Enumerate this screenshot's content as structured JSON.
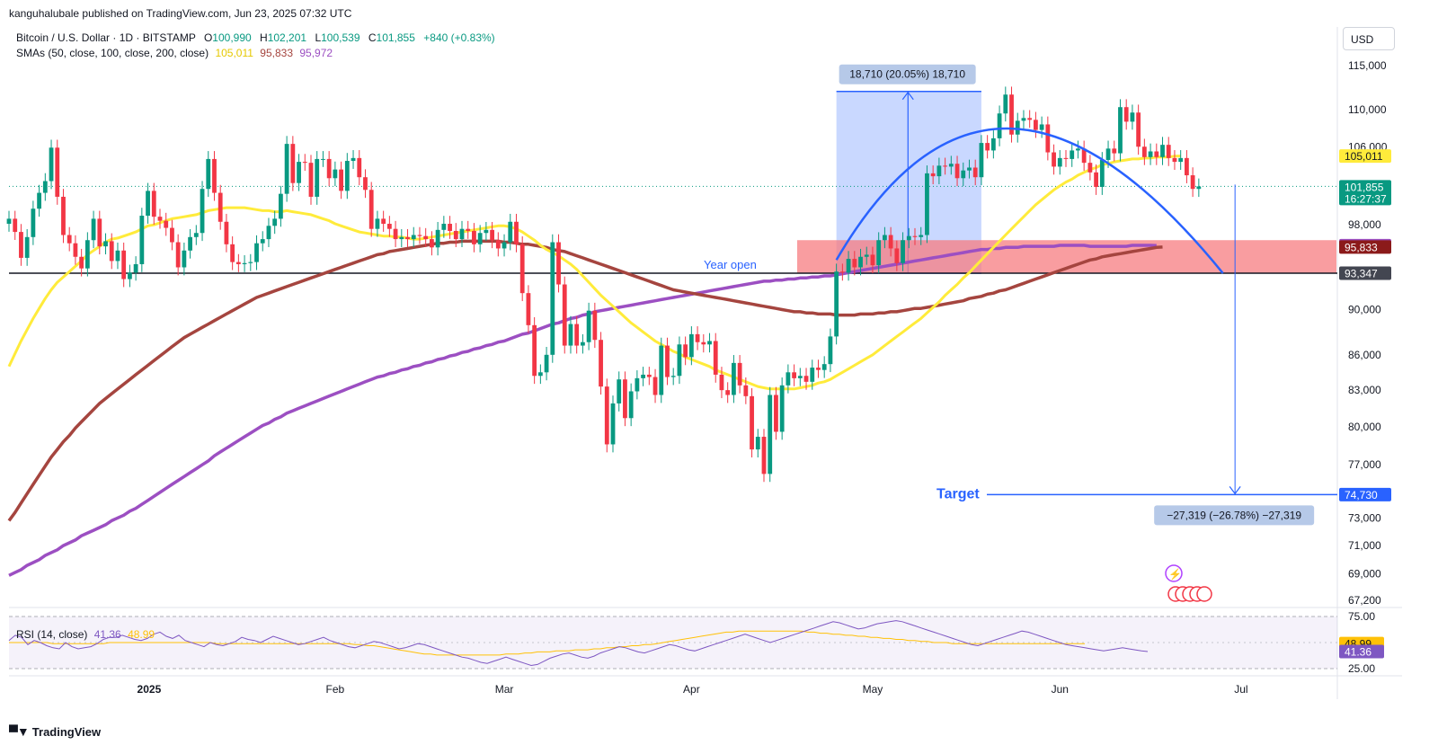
{
  "header": {
    "publisher": "kanguhalubale published on TradingView.com, Jun 23, 2025 07:32 UTC",
    "symbol": "Bitcoin / U.S. Dollar · 1D · BITSTAMP",
    "ohlc": {
      "o_label": "O",
      "o": "100,990",
      "h_label": "H",
      "h": "102,201",
      "l_label": "L",
      "l": "100,539",
      "c_label": "C",
      "c": "101,855",
      "change": "+840 (+0.83%)"
    },
    "sma_label": "SMAs (50, close, 100, close, 200, close)",
    "sma_values": {
      "sma50": "105,011",
      "sma100": "95,833",
      "sma200": "95,972"
    },
    "rsi_label": "RSI (14, close)",
    "rsi_values": {
      "rsi": "41.36",
      "ma": "48.99"
    },
    "currency": "USD",
    "brand": "TradingView"
  },
  "colors": {
    "up": "#089981",
    "down": "#f23645",
    "sma50": "#ffeb3b",
    "sma100": "#a5453f",
    "sma200": "#9c4fc2",
    "rsi": "#7e57c2",
    "rsi_ma": "#ffc107",
    "accent": "#2962ff",
    "zone": "#f77c80",
    "measure": "#2962ff"
  },
  "chart_data": {
    "type": "line",
    "yaxis_ticks": [
      "115,000",
      "110,000",
      "106,000",
      "98,000",
      "90,000",
      "86,000",
      "83,000",
      "80,000",
      "77,000",
      "73,000",
      "71,000",
      "69,000",
      "67,200"
    ],
    "xaxis_ticks": [
      "2025",
      "Feb",
      "Mar",
      "Apr",
      "May",
      "Jun",
      "Jul"
    ],
    "rsi_ticks": [
      "75.00",
      "25.00"
    ],
    "price_tags": [
      {
        "label": "105,011",
        "value": 105011,
        "bg": "#ffeb3b",
        "fg": "#131722"
      },
      {
        "label": "101,855",
        "sub": "16:27:37",
        "value": 101855,
        "bg": "#089981",
        "fg": "#ffffff"
      },
      {
        "label": "95,972",
        "value": 95972,
        "bg": "#9c4fc2",
        "fg": "#ffffff"
      },
      {
        "label": "95,833",
        "value": 95833,
        "bg": "#8b1a1a",
        "fg": "#ffffff"
      },
      {
        "label": "93,347",
        "value": 93347,
        "bg": "#434651",
        "fg": "#ffffff"
      },
      {
        "label": "74,730",
        "value": 74730,
        "bg": "#2962ff",
        "fg": "#ffffff"
      }
    ],
    "rsi_tags": [
      {
        "label": "48.99",
        "value": 48.99,
        "bg": "#ffc107",
        "fg": "#131722"
      },
      {
        "label": "41.36",
        "value": 41.36,
        "bg": "#7e57c2",
        "fg": "#ffffff"
      }
    ],
    "year_open": {
      "label": "Year open",
      "value": 93347
    },
    "target": {
      "label": "Target",
      "value": 74730
    },
    "measure_up": {
      "label": "18,710 (20.05%) 18,710",
      "from": 93347,
      "to": 112057
    },
    "measure_down": {
      "label": "−27,319 (−26.78%) −27,319",
      "from": 102049,
      "to": 74730
    },
    "resistance_zone": [
      93347,
      96500
    ],
    "series_close": [
      98600,
      97300,
      94800,
      96800,
      99600,
      101200,
      102400,
      105900,
      100800,
      97000,
      96200,
      94900,
      93800,
      96500,
      98600,
      95900,
      96400,
      94500,
      95500,
      92800,
      93400,
      94200,
      98900,
      101400,
      98800,
      98400,
      97700,
      96300,
      93900,
      95500,
      96800,
      97200,
      101600,
      104700,
      101200,
      98300,
      96100,
      94400,
      94200,
      94300,
      94400,
      96200,
      96600,
      97900,
      98600,
      101100,
      106300,
      102200,
      104400,
      104300,
      100800,
      104700,
      104700,
      102700,
      103600,
      101400,
      104500,
      104800,
      102800,
      101500,
      97600,
      98600,
      98100,
      97600,
      96600,
      96800,
      96600,
      97000,
      96900,
      96600,
      95800,
      97500,
      98100,
      97400,
      96600,
      97600,
      97400,
      96100,
      97200,
      97500,
      96500,
      95700,
      96300,
      98300,
      96100,
      91500,
      88600,
      84200,
      84500,
      86000,
      96300,
      92300,
      86800,
      88700,
      86800,
      87100,
      89900,
      87300,
      83300,
      78600,
      81900,
      83900,
      80700,
      82900,
      84000,
      84300,
      84100,
      82600,
      86800,
      84100,
      84200,
      86900,
      85800,
      87800,
      87100,
      86900,
      87200,
      84300,
      83000,
      82600,
      85300,
      83400,
      82500,
      78200,
      79200,
      76300,
      82600,
      79600,
      83400,
      84500,
      84000,
      84200,
      83700,
      84900,
      84700,
      85200,
      87600,
      93500,
      93400,
      94700,
      93900,
      94900,
      95100,
      94100,
      96500,
      97000,
      95700,
      94300,
      96500,
      96900,
      96800,
      97000,
      103200,
      102900,
      104000,
      103900,
      104200,
      102700,
      103500,
      103800,
      102800,
      106400,
      105600,
      106900,
      109600,
      111700,
      107300,
      108800,
      109100,
      108900,
      107800,
      108400,
      105400,
      103900,
      104800,
      104700,
      105600,
      105800,
      104300,
      103300,
      101800,
      104600,
      105800,
      105300,
      110300,
      108700,
      109700,
      106000,
      104900,
      105500,
      104900,
      106200,
      104800,
      104400,
      104800,
      103000,
      101600,
      101855
    ],
    "sma50": [
      85000,
      86100,
      87200,
      88200,
      89200,
      90100,
      91000,
      91800,
      92500,
      93000,
      93500,
      94000,
      94500,
      95100,
      95500,
      95900,
      96300,
      96600,
      96700,
      96900,
      97100,
      97300,
      97600,
      97900,
      98000,
      98200,
      98400,
      98600,
      98700,
      98800,
      98900,
      99000,
      99200,
      99400,
      99500,
      99600,
      99700,
      99700,
      99700,
      99700,
      99600,
      99500,
      99400,
      99400,
      99300,
      99300,
      99400,
      99300,
      99200,
      99100,
      99000,
      98800,
      98600,
      98400,
      98100,
      97900,
      97700,
      97500,
      97300,
      97200,
      97100,
      97000,
      96900,
      96900,
      96800,
      96800,
      96700,
      96600,
      96600,
      96700,
      96800,
      96900,
      97000,
      97100,
      97200,
      97300,
      97400,
      97500,
      97600,
      97700,
      97800,
      97900,
      97900,
      97800,
      97600,
      97300,
      96900,
      96500,
      96000,
      95600,
      95300,
      95000,
      94600,
      94200,
      93700,
      93100,
      92500,
      91900,
      91300,
      90800,
      90300,
      89800,
      89300,
      88800,
      88400,
      88000,
      87600,
      87200,
      86900,
      86600,
      86300,
      86100,
      85800,
      85600,
      85400,
      85200,
      85000,
      84700,
      84500,
      84300,
      84100,
      83900,
      83700,
      83500,
      83300,
      83200,
      83100,
      83100,
      83100,
      83100,
      83100,
      83200,
      83300,
      83400,
      83600,
      83700,
      83900,
      84200,
      84500,
      84800,
      85100,
      85400,
      85700,
      86000,
      86400,
      86800,
      87200,
      87600,
      88000,
      88400,
      88800,
      89200,
      89700,
      90200,
      90700,
      91300,
      91800,
      92300,
      92900,
      93400,
      94000,
      94600,
      95200,
      95800,
      96400,
      97000,
      97600,
      98200,
      98800,
      99400,
      100000,
      100500,
      101000,
      101500,
      101900,
      102300,
      102600,
      103000,
      103300,
      103600,
      103800,
      104100,
      104200,
      104400,
      104500,
      104600,
      104700,
      104700,
      104800,
      104800,
      104900,
      104900,
      104900,
      105000,
      105011
    ],
    "sma100": [
      72800,
      73400,
      74100,
      74800,
      75500,
      76200,
      76900,
      77600,
      78200,
      78800,
      79300,
      79900,
      80400,
      80900,
      81400,
      81900,
      82300,
      82700,
      83100,
      83500,
      83900,
      84300,
      84700,
      85100,
      85500,
      85900,
      86300,
      86700,
      87100,
      87500,
      87800,
      88100,
      88400,
      88700,
      89000,
      89300,
      89600,
      89900,
      90200,
      90500,
      90800,
      91100,
      91300,
      91500,
      91700,
      91900,
      92100,
      92300,
      92500,
      92700,
      92900,
      93100,
      93300,
      93500,
      93700,
      93900,
      94100,
      94300,
      94500,
      94700,
      94900,
      95100,
      95200,
      95400,
      95500,
      95600,
      95700,
      95800,
      95900,
      96000,
      96100,
      96200,
      96200,
      96300,
      96300,
      96400,
      96400,
      96400,
      96400,
      96400,
      96400,
      96400,
      96300,
      96300,
      96200,
      96100,
      96100,
      96000,
      95900,
      95800,
      95600,
      95500,
      95400,
      95200,
      95000,
      94800,
      94600,
      94400,
      94200,
      94000,
      93800,
      93600,
      93400,
      93200,
      93000,
      92800,
      92600,
      92400,
      92200,
      92000,
      91800,
      91700,
      91600,
      91500,
      91400,
      91300,
      91200,
      91100,
      91000,
      90900,
      90800,
      90700,
      90600,
      90500,
      90400,
      90300,
      90200,
      90100,
      90000,
      89900,
      89800,
      89800,
      89700,
      89700,
      89600,
      89600,
      89600,
      89500,
      89500,
      89500,
      89500,
      89600,
      89600,
      89600,
      89700,
      89700,
      89800,
      89800,
      89900,
      90000,
      90100,
      90100,
      90200,
      90300,
      90400,
      90500,
      90600,
      90700,
      90800,
      91000,
      91100,
      91200,
      91400,
      91500,
      91700,
      91800,
      92000,
      92200,
      92400,
      92600,
      92800,
      93000,
      93200,
      93400,
      93600,
      93800,
      94000,
      94200,
      94400,
      94600,
      94700,
      94900,
      95000,
      95100,
      95200,
      95300,
      95400,
      95500,
      95600,
      95700,
      95800,
      95833
    ],
    "sma200": [
      68900,
      69100,
      69300,
      69600,
      69800,
      70000,
      70300,
      70500,
      70700,
      71000,
      71200,
      71400,
      71700,
      71900,
      72100,
      72300,
      72500,
      72800,
      73000,
      73200,
      73500,
      73700,
      74000,
      74300,
      74600,
      74900,
      75200,
      75500,
      75800,
      76100,
      76400,
      76700,
      77000,
      77300,
      77700,
      78000,
      78300,
      78600,
      78900,
      79200,
      79500,
      79800,
      80100,
      80300,
      80600,
      80800,
      81100,
      81300,
      81500,
      81700,
      81900,
      82100,
      82300,
      82500,
      82700,
      82900,
      83100,
      83300,
      83500,
      83700,
      83900,
      84100,
      84200,
      84400,
      84500,
      84700,
      84800,
      85000,
      85100,
      85300,
      85400,
      85600,
      85700,
      85900,
      86000,
      86200,
      86300,
      86500,
      86600,
      86800,
      86900,
      87100,
      87200,
      87400,
      87600,
      87800,
      87900,
      88100,
      88300,
      88500,
      88700,
      88800,
      89000,
      89200,
      89300,
      89500,
      89600,
      89800,
      89900,
      90000,
      90100,
      90200,
      90300,
      90400,
      90500,
      90600,
      90700,
      90800,
      90900,
      91000,
      91100,
      91200,
      91300,
      91400,
      91500,
      91600,
      91700,
      91800,
      91900,
      92000,
      92100,
      92200,
      92300,
      92400,
      92500,
      92600,
      92600,
      92700,
      92700,
      92800,
      92800,
      92900,
      92900,
      93000,
      93000,
      93100,
      93100,
      93200,
      93300,
      93400,
      93500,
      93600,
      93700,
      93800,
      93900,
      94000,
      94100,
      94200,
      94300,
      94400,
      94500,
      94600,
      94700,
      94800,
      94900,
      95000,
      95100,
      95200,
      95300,
      95400,
      95500,
      95600,
      95600,
      95700,
      95700,
      95800,
      95800,
      95800,
      95900,
      95900,
      95900,
      95900,
      95900,
      95900,
      96000,
      96000,
      96000,
      96000,
      96000,
      95900,
      95900,
      95900,
      95900,
      95900,
      95900,
      95900,
      96000,
      96000,
      96000,
      96000,
      95972
    ],
    "rsi": [
      52,
      57,
      55,
      48,
      52,
      50,
      47,
      45,
      44,
      50,
      46,
      44,
      45,
      46,
      49,
      53,
      55,
      55,
      57,
      55,
      53,
      52,
      54,
      58,
      60,
      56,
      54,
      57,
      52,
      50,
      48,
      46,
      50,
      48,
      47,
      49,
      51,
      55,
      53,
      52,
      50,
      53,
      56,
      54,
      52,
      50,
      48,
      49,
      51,
      53,
      55,
      52,
      50,
      48,
      46,
      45,
      47,
      49,
      51,
      50,
      48,
      46,
      44,
      45,
      47,
      49,
      48,
      46,
      44,
      42,
      40,
      38,
      36,
      35,
      33,
      31,
      30,
      32,
      34,
      36,
      34,
      32,
      30,
      28,
      29,
      32,
      35,
      37,
      39,
      40,
      38,
      36,
      35,
      37,
      40,
      42,
      44,
      46,
      45,
      43,
      41,
      40,
      42,
      44,
      46,
      48,
      47,
      45,
      43,
      42,
      44,
      46,
      48,
      50,
      52,
      54,
      56,
      58,
      56,
      54,
      52,
      50,
      52,
      54,
      56,
      58,
      60,
      62,
      64,
      66,
      68,
      70,
      69,
      67,
      65,
      63,
      64,
      66,
      68,
      69,
      70,
      71,
      70,
      68,
      66,
      64,
      62,
      60,
      58,
      56,
      54,
      52,
      50,
      48,
      47,
      49,
      51,
      53,
      55,
      57,
      59,
      61,
      60,
      58,
      56,
      54,
      52,
      50,
      48,
      47,
      46,
      45,
      44,
      43,
      42,
      43,
      44,
      45,
      44,
      43,
      42,
      41.36
    ],
    "rsi_ma": [
      50,
      50,
      50,
      50,
      50,
      50,
      50,
      49,
      49,
      49,
      49,
      49,
      49,
      49,
      49,
      49,
      50,
      50,
      50,
      50,
      50,
      50,
      50,
      50,
      50,
      50,
      50,
      50,
      50,
      50,
      50,
      50,
      50,
      49,
      49,
      49,
      49,
      49,
      49,
      49,
      49,
      49,
      49,
      49,
      49,
      49,
      49,
      49,
      49,
      49,
      49,
      49,
      49,
      49,
      49,
      48,
      48,
      47,
      47,
      46,
      45,
      44,
      43,
      42,
      41,
      40,
      39,
      39,
      38,
      38,
      38,
      38,
      38,
      38,
      38,
      38,
      38,
      38,
      38,
      39,
      39,
      39,
      40,
      40,
      41,
      41,
      41,
      42,
      42,
      42,
      43,
      43,
      43,
      44,
      44,
      45,
      45,
      46,
      46,
      47,
      47,
      48,
      48,
      49,
      50,
      51,
      52,
      53,
      54,
      55,
      56,
      57,
      58,
      59,
      60,
      60,
      61,
      61,
      61,
      61,
      61,
      61,
      61,
      61,
      61,
      61,
      61,
      60,
      60,
      59,
      59,
      58,
      58,
      57,
      57,
      56,
      56,
      55,
      55,
      54,
      54,
      53,
      53,
      52,
      52,
      51,
      51,
      50,
      50,
      50,
      49,
      49,
      49,
      49,
      49,
      49,
      49,
      49,
      49,
      49,
      49,
      49,
      49,
      49,
      49,
      49,
      49,
      49,
      49,
      49,
      49,
      48.99
    ]
  }
}
